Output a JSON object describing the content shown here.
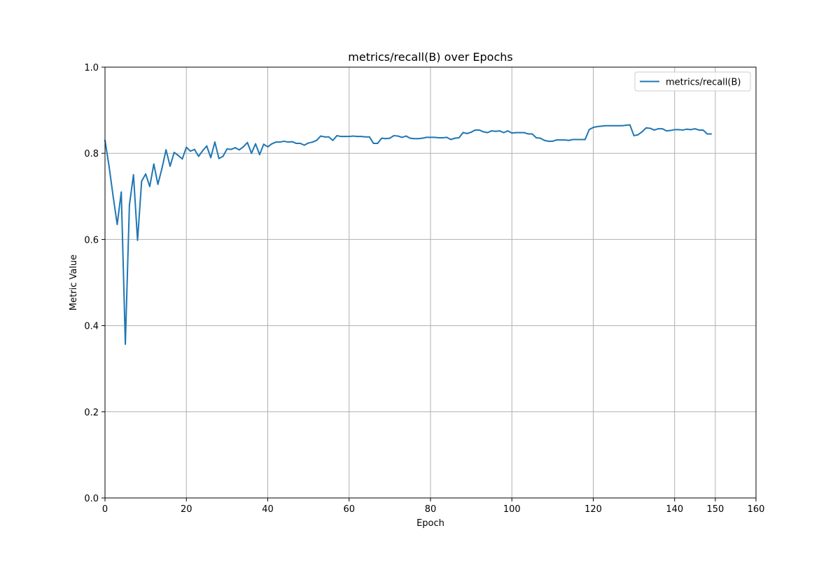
{
  "chart_data": {
    "type": "line",
    "title": "metrics/recall(B) over Epochs",
    "xlabel": "Epoch",
    "ylabel": "Metric Value",
    "xlim": [
      0,
      160
    ],
    "ylim": [
      0,
      1.0
    ],
    "xticks": [
      0,
      20,
      40,
      60,
      80,
      100,
      120,
      140,
      150,
      160
    ],
    "yticks": [
      0.0,
      0.2,
      0.4,
      0.6,
      0.8,
      1.0
    ],
    "xtick_labels": [
      "0",
      "20",
      "40",
      "60",
      "80",
      "100",
      "120",
      "140",
      "150",
      "160"
    ],
    "ytick_labels": [
      "0.0",
      "0.2",
      "0.4",
      "0.6",
      "0.8",
      "1.0"
    ],
    "grid": true,
    "legend_position": "top-right",
    "series": [
      {
        "name": "metrics/recall(B)",
        "color": "#1f77b4",
        "x": [
          0,
          1,
          2,
          3,
          4,
          5,
          6,
          7,
          8,
          9,
          10,
          11,
          12,
          13,
          14,
          15,
          16,
          17,
          18,
          19,
          20,
          21,
          22,
          23,
          24,
          25,
          26,
          27,
          28,
          29,
          30,
          31,
          32,
          33,
          34,
          35,
          36,
          37,
          38,
          39,
          40,
          41,
          42,
          43,
          44,
          45,
          46,
          47,
          48,
          49,
          50,
          51,
          52,
          53,
          54,
          55,
          56,
          57,
          58,
          59,
          60,
          61,
          62,
          63,
          64,
          65,
          66,
          67,
          68,
          69,
          70,
          71,
          72,
          73,
          74,
          75,
          76,
          77,
          78,
          79,
          80,
          81,
          82,
          83,
          84,
          85,
          86,
          87,
          88,
          89,
          90,
          91,
          92,
          93,
          94,
          95,
          96,
          97,
          98,
          99,
          100,
          101,
          102,
          103,
          104,
          105,
          106,
          107,
          108,
          109,
          110,
          111,
          112,
          113,
          114,
          115,
          116,
          117,
          118,
          119,
          120,
          121,
          122,
          123,
          124,
          125,
          126,
          127,
          128,
          129,
          130,
          131,
          132,
          133,
          134,
          135,
          136,
          137,
          138,
          139,
          140,
          141,
          142,
          143,
          144,
          145,
          146,
          147,
          148,
          149
        ],
        "y": [
          0.83,
          0.77,
          0.7,
          0.635,
          0.71,
          0.357,
          0.68,
          0.75,
          0.598,
          0.735,
          0.752,
          0.723,
          0.775,
          0.728,
          0.765,
          0.808,
          0.77,
          0.802,
          0.795,
          0.787,
          0.814,
          0.805,
          0.809,
          0.793,
          0.806,
          0.817,
          0.79,
          0.826,
          0.788,
          0.793,
          0.81,
          0.809,
          0.813,
          0.808,
          0.815,
          0.825,
          0.8,
          0.822,
          0.797,
          0.821,
          0.815,
          0.822,
          0.826,
          0.826,
          0.828,
          0.826,
          0.827,
          0.823,
          0.823,
          0.819,
          0.824,
          0.826,
          0.83,
          0.84,
          0.838,
          0.838,
          0.83,
          0.841,
          0.839,
          0.839,
          0.839,
          0.84,
          0.839,
          0.839,
          0.838,
          0.838,
          0.823,
          0.823,
          0.835,
          0.834,
          0.835,
          0.841,
          0.84,
          0.837,
          0.84,
          0.835,
          0.834,
          0.834,
          0.835,
          0.837,
          0.837,
          0.837,
          0.836,
          0.836,
          0.837,
          0.832,
          0.835,
          0.836,
          0.848,
          0.846,
          0.849,
          0.854,
          0.854,
          0.85,
          0.848,
          0.852,
          0.851,
          0.852,
          0.848,
          0.852,
          0.847,
          0.848,
          0.848,
          0.848,
          0.845,
          0.845,
          0.836,
          0.835,
          0.83,
          0.828,
          0.828,
          0.831,
          0.831,
          0.831,
          0.83,
          0.832,
          0.832,
          0.832,
          0.832,
          0.855,
          0.86,
          0.862,
          0.863,
          0.864,
          0.864,
          0.864,
          0.864,
          0.864,
          0.865,
          0.866,
          0.841,
          0.843,
          0.85,
          0.859,
          0.858,
          0.854,
          0.857,
          0.857,
          0.852,
          0.853,
          0.855,
          0.855,
          0.854,
          0.856,
          0.855,
          0.857,
          0.854,
          0.854,
          0.845,
          0.845
        ]
      }
    ]
  }
}
